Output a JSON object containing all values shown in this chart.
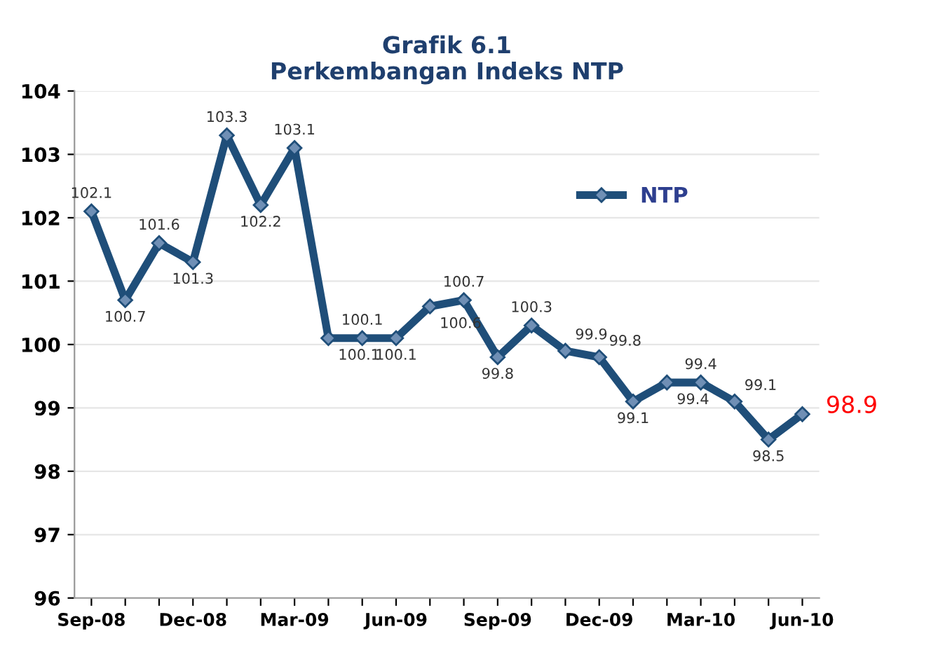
{
  "chart_data": {
    "type": "line",
    "title": "Grafik 6.1\nPerkembangan Indeks NTP",
    "categories": [
      "Sep-08",
      null,
      null,
      "Dec-08",
      null,
      null,
      "Mar-09",
      null,
      null,
      "Jun-09",
      null,
      null,
      "Sep-09",
      null,
      null,
      "Dec-09",
      null,
      null,
      "Mar-10",
      null,
      null,
      "Jun-10"
    ],
    "series": [
      {
        "name": "NTP",
        "color": "#1f4e79",
        "values": [
          102.1,
          100.7,
          101.6,
          101.3,
          103.3,
          102.2,
          103.1,
          100.1,
          100.1,
          100.1,
          100.6,
          100.7,
          99.8,
          100.3,
          99.9,
          99.8,
          99.1,
          99.4,
          99.4,
          99.1,
          98.5,
          98.9
        ],
        "value_labels": [
          "102.1",
          "100.7",
          "101.6",
          "101.3",
          "103.3",
          "102.2",
          "103.1",
          "100.1",
          "100.1",
          "100.1",
          "100.6",
          "100.7",
          "99.8",
          "100.3",
          "99.9",
          "99.8",
          "99.1",
          "99.4",
          "99.4",
          "99.1",
          "98.5",
          "98.9"
        ]
      }
    ],
    "ylim": [
      96,
      104
    ],
    "yticks": [
      96,
      97,
      98,
      99,
      100,
      101,
      102,
      103,
      104
    ],
    "grid": "y",
    "legend": "top right",
    "marker": "diamond",
    "line_style": "solid"
  }
}
